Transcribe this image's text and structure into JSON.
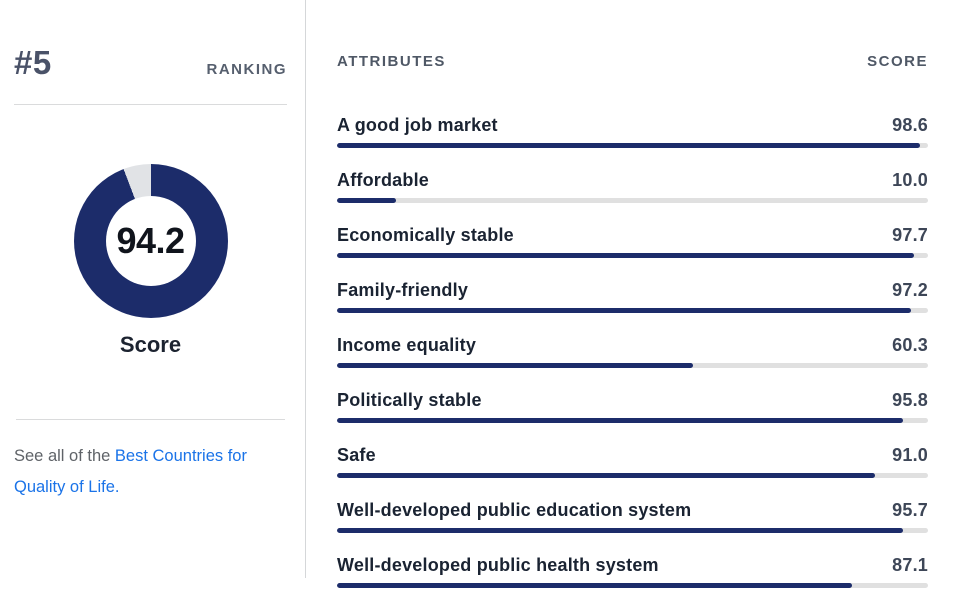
{
  "left_panel": {
    "rank": "#5",
    "rank_label": "RANKING",
    "score_value": "94.2",
    "score_percent": 94.2,
    "score_label": "Score",
    "link_prefix": "See all of the ",
    "link_text": "Best Countries for Quality of Life."
  },
  "attributes_table": {
    "header_attributes": "ATTRIBUTES",
    "header_score": "SCORE",
    "rows": [
      {
        "label": "A good job market",
        "score": "98.6",
        "percent": 98.6
      },
      {
        "label": "Affordable",
        "score": "10.0",
        "percent": 10.0
      },
      {
        "label": "Economically stable",
        "score": "97.7",
        "percent": 97.7
      },
      {
        "label": "Family-friendly",
        "score": "97.2",
        "percent": 97.2
      },
      {
        "label": "Income equality",
        "score": "60.3",
        "percent": 60.3
      },
      {
        "label": "Politically stable",
        "score": "95.8",
        "percent": 95.8
      },
      {
        "label": "Safe",
        "score": "91.0",
        "percent": 91.0
      },
      {
        "label": "Well-developed public education system",
        "score": "95.7",
        "percent": 95.7
      },
      {
        "label": "Well-developed public health system",
        "score": "87.1",
        "percent": 87.1
      }
    ]
  },
  "colors": {
    "navy": "#1c2c6a",
    "donut_gap": "#e1e3e6",
    "bar_track": "#e0e0e0",
    "link_blue": "#1a73e8"
  },
  "chart_data": [
    {
      "type": "pie",
      "subtype": "donut",
      "title": "Score",
      "labels": [
        "Score",
        "Remainder"
      ],
      "values": [
        94.2,
        5.8
      ],
      "center_text": "94.2",
      "colors": [
        "#1c2c6a",
        "#e1e3e6"
      ],
      "start_angle_deg": 0,
      "direction": "clockwise"
    },
    {
      "type": "bar",
      "orientation": "horizontal",
      "title": "Attributes vs Score",
      "categories": [
        "A good job market",
        "Affordable",
        "Economically stable",
        "Family-friendly",
        "Income equality",
        "Politically stable",
        "Safe",
        "Well-developed public education system",
        "Well-developed public health system"
      ],
      "values": [
        98.6,
        10.0,
        97.7,
        97.2,
        60.3,
        95.8,
        91.0,
        95.7,
        87.1
      ],
      "xlabel": "SCORE",
      "ylabel": "ATTRIBUTES",
      "xlim": [
        0,
        100
      ],
      "grid": false,
      "bar_color": "#1c2c6a",
      "track_color": "#e0e0e0"
    }
  ]
}
